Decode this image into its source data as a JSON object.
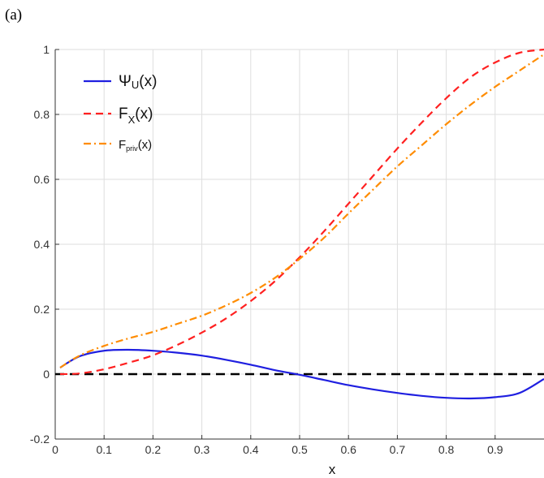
{
  "panel_label": "(a)",
  "chart_data": {
    "type": "line",
    "title": "",
    "xlabel": "x",
    "ylabel": "",
    "xlim": [
      0,
      1
    ],
    "ylim": [
      -0.2,
      1
    ],
    "x_ticks": [
      0,
      0.1,
      0.2,
      0.3,
      0.4,
      0.5,
      0.6,
      0.7,
      0.8,
      0.9
    ],
    "x_tick_labels": [
      "0",
      "0.1",
      "0.2",
      "0.3",
      "0.4",
      "0.5",
      "0.6",
      "0.7",
      "0.8",
      "0.9"
    ],
    "y_ticks": [
      -0.2,
      0,
      0.2,
      0.4,
      0.6,
      0.8,
      1
    ],
    "y_tick_labels": [
      "-0.2",
      "0",
      "0.2",
      "0.4",
      "0.6",
      "0.8",
      "1"
    ],
    "grid": true,
    "legend_position": "top-left",
    "x": [
      0.01,
      0.05,
      0.1,
      0.15,
      0.2,
      0.25,
      0.3,
      0.35,
      0.4,
      0.45,
      0.5,
      0.55,
      0.6,
      0.65,
      0.7,
      0.75,
      0.8,
      0.85,
      0.9,
      0.95,
      1.0
    ],
    "series": [
      {
        "name": "Ψ_U(x)",
        "color": "#1f1fe0",
        "style": "solid",
        "values": [
          0.02,
          0.055,
          0.072,
          0.075,
          0.072,
          0.066,
          0.057,
          0.044,
          0.029,
          0.012,
          -0.002,
          -0.018,
          -0.034,
          -0.047,
          -0.058,
          -0.067,
          -0.073,
          -0.075,
          -0.071,
          -0.058,
          -0.015
        ]
      },
      {
        "name": "F_X(x)",
        "color": "#ff2020",
        "style": "dashed",
        "values": [
          0.0,
          0.002,
          0.015,
          0.035,
          0.058,
          0.09,
          0.128,
          0.172,
          0.225,
          0.287,
          0.36,
          0.44,
          0.525,
          0.61,
          0.695,
          0.775,
          0.85,
          0.915,
          0.96,
          0.99,
          1.0
        ]
      },
      {
        "name": "F_priv(x)",
        "color": "#ff8c00",
        "style": "dashdot",
        "values": [
          0.02,
          0.057,
          0.087,
          0.11,
          0.13,
          0.155,
          0.18,
          0.212,
          0.25,
          0.297,
          0.355,
          0.42,
          0.495,
          0.568,
          0.64,
          0.705,
          0.77,
          0.83,
          0.885,
          0.935,
          0.985
        ]
      }
    ],
    "reference_line": {
      "y": 0,
      "color": "#000000",
      "style": "dashed"
    },
    "legend": [
      {
        "base": "Ψ",
        "sub": "U",
        "rest": "(x)",
        "color": "#1f1fe0",
        "style": "solid"
      },
      {
        "base": "F",
        "sub": "X",
        "rest": "(x)",
        "color": "#ff2020",
        "style": "dashed"
      },
      {
        "base": "F",
        "sub": "priv",
        "rest": "(x)",
        "color": "#ff8c00",
        "style": "dashdot"
      }
    ]
  }
}
